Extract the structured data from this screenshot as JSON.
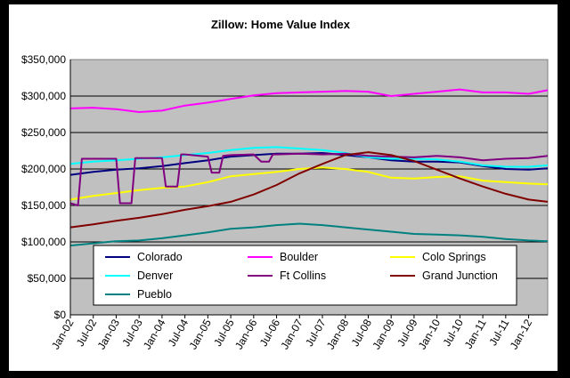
{
  "chart_data": {
    "type": "line",
    "title": "Zillow: Home Value Index",
    "xlabel": "",
    "ylabel": "",
    "ylim": [
      0,
      350000
    ],
    "yticks": [
      "$0",
      "$50,000",
      "$100,000",
      "$150,000",
      "$200,000",
      "$250,000",
      "$300,000",
      "$350,000"
    ],
    "xticks": [
      "Jan-02",
      "Jul-02",
      "Jan-03",
      "Jul-03",
      "Jan-04",
      "Jul-04",
      "Jan-05",
      "Jul-05",
      "Jan-06",
      "Jul-06",
      "Jan-07",
      "Jul-07",
      "Jan-08",
      "Jul-08",
      "Jan-09",
      "Jul-09",
      "Jan-10",
      "Jul-10",
      "Jan-11",
      "Jul-11",
      "Jan-12"
    ],
    "x_start": "2002-01",
    "x_end": "2012-06",
    "grid": true,
    "legend_position": "bottom-center",
    "colors": {
      "frame": "#000000",
      "chart_bg": "#ffffff",
      "plot_bg": "#c0c0c0",
      "gridline": "#000000"
    },
    "series": [
      {
        "name": "Colorado",
        "color": "#000080",
        "points": [
          [
            "2002-01",
            192000
          ],
          [
            "2002-07",
            196000
          ],
          [
            "2003-01",
            199000
          ],
          [
            "2003-07",
            201000
          ],
          [
            "2004-01",
            204000
          ],
          [
            "2004-07",
            208000
          ],
          [
            "2005-01",
            212000
          ],
          [
            "2005-07",
            217000
          ],
          [
            "2006-01",
            219000
          ],
          [
            "2006-07",
            221000
          ],
          [
            "2007-01",
            221000
          ],
          [
            "2007-07",
            222000
          ],
          [
            "2008-01",
            219000
          ],
          [
            "2008-07",
            216000
          ],
          [
            "2009-01",
            212000
          ],
          [
            "2009-07",
            210000
          ],
          [
            "2010-01",
            210000
          ],
          [
            "2010-07",
            209000
          ],
          [
            "2011-01",
            204000
          ],
          [
            "2011-07",
            200000
          ],
          [
            "2012-01",
            199000
          ],
          [
            "2012-06",
            201000
          ]
        ]
      },
      {
        "name": "Boulder",
        "color": "#ff00ff",
        "points": [
          [
            "2002-01",
            283000
          ],
          [
            "2002-07",
            284000
          ],
          [
            "2003-01",
            282000
          ],
          [
            "2003-07",
            278000
          ],
          [
            "2004-01",
            280000
          ],
          [
            "2004-07",
            287000
          ],
          [
            "2005-01",
            291000
          ],
          [
            "2005-07",
            296000
          ],
          [
            "2006-01",
            301000
          ],
          [
            "2006-07",
            304000
          ],
          [
            "2007-01",
            305000
          ],
          [
            "2007-07",
            306000
          ],
          [
            "2008-01",
            307000
          ],
          [
            "2008-07",
            306000
          ],
          [
            "2009-01",
            300000
          ],
          [
            "2009-07",
            303000
          ],
          [
            "2010-01",
            306000
          ],
          [
            "2010-07",
            309000
          ],
          [
            "2011-01",
            305000
          ],
          [
            "2011-07",
            305000
          ],
          [
            "2012-01",
            303000
          ],
          [
            "2012-06",
            308000
          ]
        ]
      },
      {
        "name": "Colo Springs",
        "color": "#ffff00",
        "points": [
          [
            "2002-01",
            158000
          ],
          [
            "2002-07",
            163000
          ],
          [
            "2003-01",
            167000
          ],
          [
            "2003-07",
            171000
          ],
          [
            "2004-01",
            174000
          ],
          [
            "2004-07",
            176000
          ],
          [
            "2005-01",
            182000
          ],
          [
            "2005-07",
            190000
          ],
          [
            "2006-01",
            193000
          ],
          [
            "2006-07",
            196000
          ],
          [
            "2007-01",
            200000
          ],
          [
            "2007-07",
            202000
          ],
          [
            "2008-01",
            200000
          ],
          [
            "2008-07",
            196000
          ],
          [
            "2009-01",
            188000
          ],
          [
            "2009-07",
            187000
          ],
          [
            "2010-01",
            189000
          ],
          [
            "2010-07",
            190000
          ],
          [
            "2011-01",
            184000
          ],
          [
            "2011-07",
            182000
          ],
          [
            "2012-01",
            180000
          ],
          [
            "2012-06",
            179000
          ]
        ]
      },
      {
        "name": "Denver",
        "color": "#00ffff",
        "points": [
          [
            "2002-01",
            207000
          ],
          [
            "2002-07",
            210000
          ],
          [
            "2003-01",
            212000
          ],
          [
            "2003-07",
            214000
          ],
          [
            "2004-01",
            216000
          ],
          [
            "2004-07",
            219000
          ],
          [
            "2005-01",
            222000
          ],
          [
            "2005-07",
            226000
          ],
          [
            "2006-01",
            229000
          ],
          [
            "2006-07",
            230000
          ],
          [
            "2007-01",
            228000
          ],
          [
            "2007-07",
            226000
          ],
          [
            "2008-01",
            222000
          ],
          [
            "2008-07",
            216000
          ],
          [
            "2009-01",
            214000
          ],
          [
            "2009-07",
            214000
          ],
          [
            "2010-01",
            213000
          ],
          [
            "2010-07",
            210000
          ],
          [
            "2011-01",
            205000
          ],
          [
            "2011-07",
            203000
          ],
          [
            "2012-01",
            203000
          ],
          [
            "2012-06",
            205000
          ]
        ]
      },
      {
        "name": "Ft Collins",
        "color": "#800080",
        "points": [
          [
            "2002-01",
            153000
          ],
          [
            "2002-03",
            150000
          ],
          [
            "2002-04",
            214000
          ],
          [
            "2002-07",
            214000
          ],
          [
            "2003-01",
            214000
          ],
          [
            "2003-02",
            153000
          ],
          [
            "2003-05",
            153000
          ],
          [
            "2003-06",
            215000
          ],
          [
            "2003-07",
            215000
          ],
          [
            "2004-01",
            215000
          ],
          [
            "2004-02",
            176000
          ],
          [
            "2004-05",
            176000
          ],
          [
            "2004-06",
            220000
          ],
          [
            "2004-07",
            220000
          ],
          [
            "2005-01",
            217000
          ],
          [
            "2005-02",
            195000
          ],
          [
            "2005-04",
            195000
          ],
          [
            "2005-05",
            218000
          ],
          [
            "2005-07",
            219000
          ],
          [
            "2006-01",
            220000
          ],
          [
            "2006-03",
            210000
          ],
          [
            "2006-05",
            210000
          ],
          [
            "2006-06",
            220000
          ],
          [
            "2006-07",
            220000
          ],
          [
            "2007-01",
            221000
          ],
          [
            "2007-07",
            220000
          ],
          [
            "2008-01",
            221000
          ],
          [
            "2008-07",
            218000
          ],
          [
            "2009-01",
            217000
          ],
          [
            "2009-07",
            216000
          ],
          [
            "2010-01",
            218000
          ],
          [
            "2010-07",
            216000
          ],
          [
            "2011-01",
            212000
          ],
          [
            "2011-07",
            214000
          ],
          [
            "2012-01",
            215000
          ],
          [
            "2012-06",
            218000
          ]
        ]
      },
      {
        "name": "Grand Junction",
        "color": "#800000",
        "points": [
          [
            "2002-01",
            120000
          ],
          [
            "2002-07",
            124000
          ],
          [
            "2003-01",
            129000
          ],
          [
            "2003-07",
            133000
          ],
          [
            "2004-01",
            138000
          ],
          [
            "2004-07",
            144000
          ],
          [
            "2005-01",
            149000
          ],
          [
            "2005-07",
            155000
          ],
          [
            "2006-01",
            165000
          ],
          [
            "2006-07",
            178000
          ],
          [
            "2007-01",
            194000
          ],
          [
            "2007-07",
            207000
          ],
          [
            "2008-01",
            219000
          ],
          [
            "2008-07",
            223000
          ],
          [
            "2009-01",
            219000
          ],
          [
            "2009-07",
            211000
          ],
          [
            "2010-01",
            199000
          ],
          [
            "2010-07",
            187000
          ],
          [
            "2011-01",
            176000
          ],
          [
            "2011-07",
            166000
          ],
          [
            "2012-01",
            158000
          ],
          [
            "2012-06",
            155000
          ]
        ]
      },
      {
        "name": "Pueblo",
        "color": "#008080",
        "points": [
          [
            "2002-01",
            95000
          ],
          [
            "2002-07",
            98000
          ],
          [
            "2003-01",
            101000
          ],
          [
            "2003-07",
            102000
          ],
          [
            "2004-01",
            105000
          ],
          [
            "2004-07",
            109000
          ],
          [
            "2005-01",
            113000
          ],
          [
            "2005-07",
            118000
          ],
          [
            "2006-01",
            120000
          ],
          [
            "2006-07",
            123000
          ],
          [
            "2007-01",
            125000
          ],
          [
            "2007-07",
            123000
          ],
          [
            "2008-01",
            120000
          ],
          [
            "2008-07",
            117000
          ],
          [
            "2009-01",
            114000
          ],
          [
            "2009-07",
            111000
          ],
          [
            "2010-01",
            110000
          ],
          [
            "2010-07",
            109000
          ],
          [
            "2011-01",
            107000
          ],
          [
            "2011-07",
            104000
          ],
          [
            "2012-01",
            102000
          ],
          [
            "2012-06",
            101000
          ]
        ]
      }
    ]
  }
}
